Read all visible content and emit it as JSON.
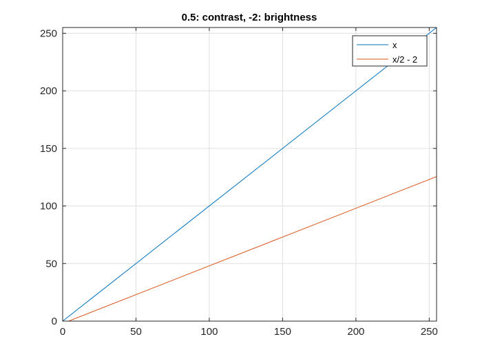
{
  "chart_data": {
    "type": "line",
    "title": "0.5: contrast, -2: brightness",
    "xlabel": "",
    "ylabel": "",
    "xlim": [
      0,
      255
    ],
    "ylim": [
      0,
      255
    ],
    "xticks": [
      0,
      50,
      100,
      150,
      200,
      250
    ],
    "yticks": [
      0,
      50,
      100,
      150,
      200,
      250
    ],
    "grid": true,
    "legend_position": "top-right",
    "series": [
      {
        "name": "x",
        "color": "#0072BD",
        "x": [
          0,
          255
        ],
        "y": [
          0,
          255
        ]
      },
      {
        "name": "x/2 - 2",
        "color": "#D95319",
        "x": [
          0,
          255
        ],
        "y": [
          -2,
          125.5
        ]
      }
    ]
  }
}
